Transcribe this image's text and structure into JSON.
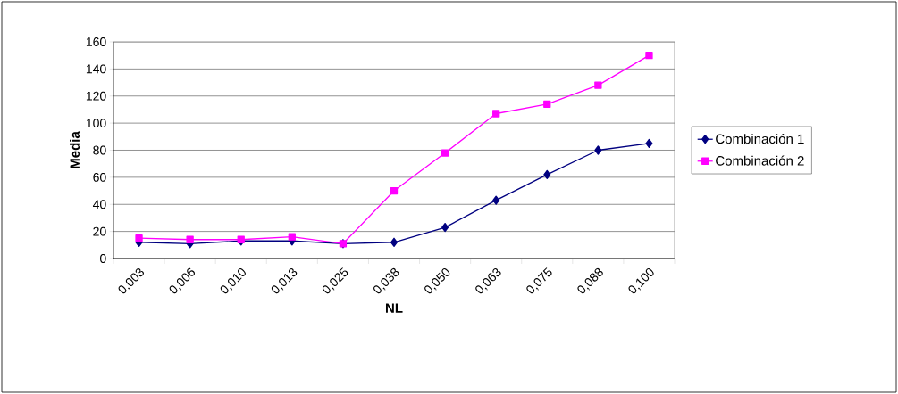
{
  "chart_data": {
    "type": "line",
    "xlabel": "NL",
    "ylabel": "Media",
    "categories": [
      "0,003",
      "0,006",
      "0,010",
      "0,013",
      "0,025",
      "0,038",
      "0,050",
      "0,063",
      "0,075",
      "0,088",
      "0,100"
    ],
    "series": [
      {
        "name": "Combinación 1",
        "color": "#000080",
        "marker": "diamond",
        "values": [
          12,
          11,
          13,
          13,
          11,
          12,
          23,
          43,
          62,
          80,
          85
        ]
      },
      {
        "name": "Combinación 2",
        "color": "#ff00ff",
        "marker": "square",
        "values": [
          15,
          14,
          14,
          16,
          11,
          50,
          78,
          107,
          114,
          128,
          150
        ]
      }
    ],
    "ylim": [
      0,
      160
    ],
    "yticks": [
      0,
      20,
      40,
      60,
      80,
      100,
      120,
      140,
      160
    ],
    "grid": "y",
    "legend": "right",
    "line_style": "solid"
  }
}
